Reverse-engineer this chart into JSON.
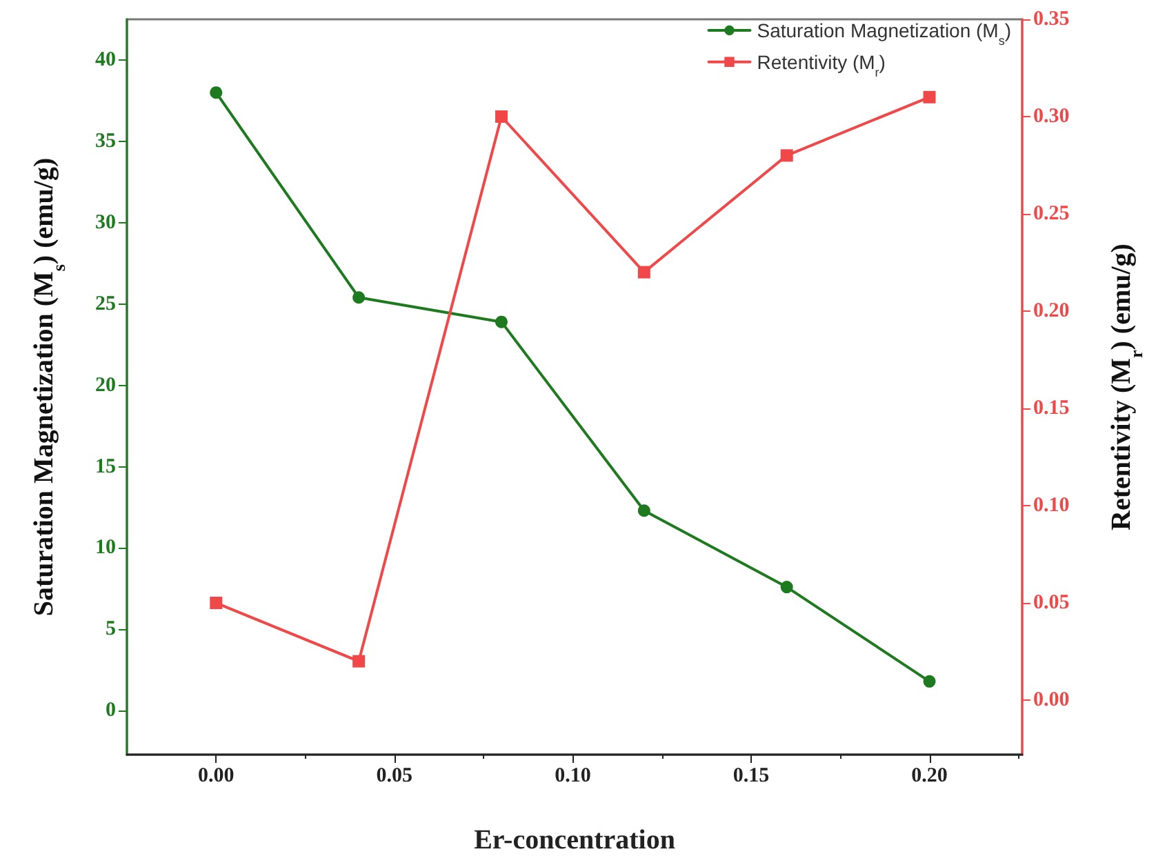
{
  "chart_data": {
    "type": "line",
    "xlabel": "Er-concentration",
    "ylabel": "Saturation Magnetization (M$_{s}$) (emu/g)",
    "y2label": "Retentivity (M$_{r}$) (emu/g)",
    "x": [
      0,
      0.04,
      0.08,
      0.12,
      0.16,
      0.2
    ],
    "series": [
      {
        "name": "Saturation Magnetization (M$_{s}$)",
        "color": "#1e7a1e",
        "marker": "circle",
        "values": [
          38,
          25.4,
          23.9,
          12.3,
          7.6,
          1.8
        ]
      },
      {
        "name": "Retentivity (M$_{r}$)",
        "color": "#f04848",
        "marker": "square",
        "axis": "y2",
        "values": [
          0.05,
          0.02,
          0.3,
          0.22,
          0.28,
          0.31
        ]
      }
    ],
    "xlim": [
      -0.025,
      0.226
    ],
    "xticks": [
      {
        "value": 0,
        "label": "0.00"
      },
      {
        "value": 0.05,
        "label": "0.05"
      },
      {
        "value": 0.1,
        "label": "0.10"
      },
      {
        "value": 0.15,
        "label": "0.15"
      },
      {
        "value": 0.2,
        "label": "0.20"
      }
    ],
    "ylim": [
      -2.7,
      42.5
    ],
    "yticks": [
      0,
      5,
      10,
      15,
      20,
      25,
      30,
      35,
      40
    ],
    "y2lim": [
      -0.028,
      0.35
    ],
    "y2ticks": [
      {
        "value": 0,
        "label": "0.00"
      },
      {
        "value": 0.05,
        "label": "0.05"
      },
      {
        "value": 0.1,
        "label": "0.10"
      },
      {
        "value": 0.15,
        "label": "0.15"
      },
      {
        "value": 0.2,
        "label": "0.20"
      },
      {
        "value": 0.25,
        "label": "0.25"
      },
      {
        "value": 0.3,
        "label": "0.30"
      },
      {
        "value": 0.35,
        "label": "0.35"
      }
    ],
    "grid": false,
    "legend": "top right",
    "line_style": "solid"
  }
}
